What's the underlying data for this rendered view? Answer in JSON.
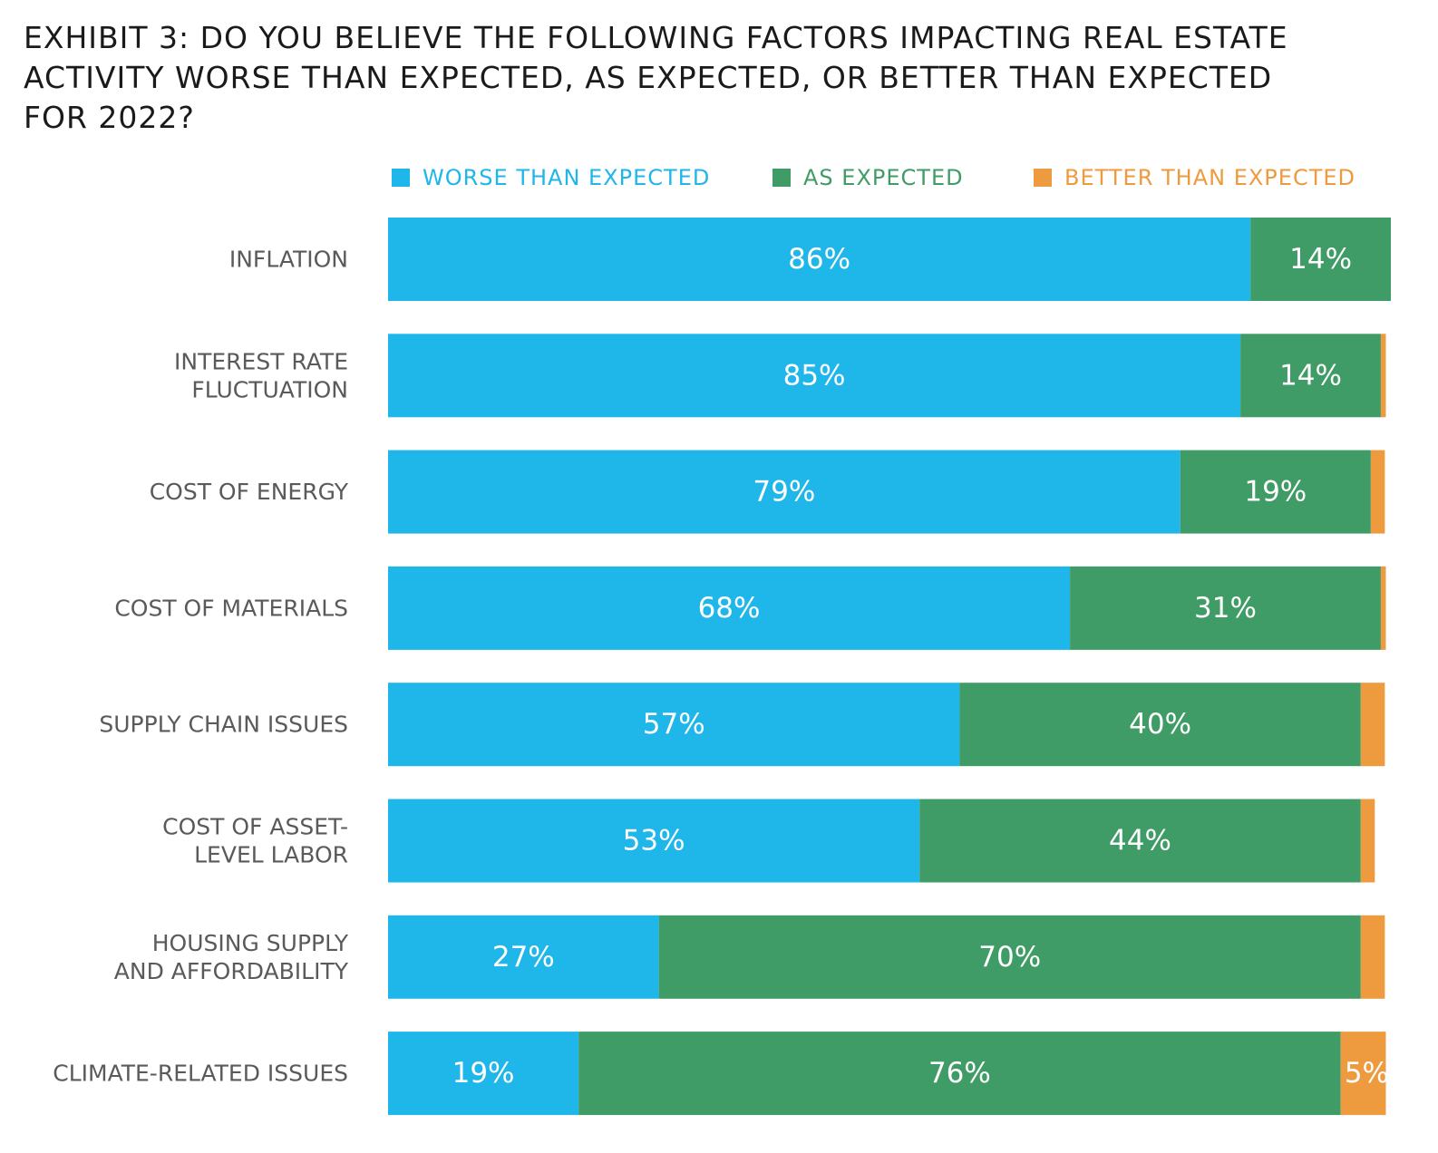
{
  "title": "EXHIBIT 3: DO YOU BELIEVE THE FOLLOWING FACTORS IMPACTING REAL ESTATE ACTIVITY WORSE THAN EXPECTED, AS EXPECTED, OR BETTER THAN EXPECTED FOR 2022?",
  "legend": {
    "worse": "WORSE THAN EXPECTED",
    "as_expected": "AS EXPECTED",
    "better": "BETTER THAN EXPECTED"
  },
  "colors": {
    "worse": "#1fb6ea",
    "as_expected": "#409c66",
    "better": "#ee9a3e"
  },
  "chart_data": {
    "type": "bar",
    "orientation": "horizontal",
    "stacked": true,
    "title": "EXHIBIT 3: DO YOU BELIEVE THE FOLLOWING FACTORS IMPACTING REAL ESTATE ACTIVITY WORSE THAN EXPECTED, AS EXPECTED, OR BETTER THAN EXPECTED FOR 2022?",
    "categories": [
      [
        "INFLATION"
      ],
      [
        "INTEREST RATE",
        "FLUCTUATION"
      ],
      [
        "COST OF ENERGY"
      ],
      [
        "COST OF MATERIALS"
      ],
      [
        "SUPPLY CHAIN ISSUES"
      ],
      [
        "COST OF ASSET-",
        "LEVEL LABOR"
      ],
      [
        "HOUSING SUPPLY",
        "AND AFFORDABILITY"
      ],
      [
        "CLIMATE-RELATED ISSUES"
      ]
    ],
    "series": [
      {
        "name": "WORSE THAN EXPECTED",
        "values": [
          86,
          85,
          79,
          68,
          57,
          53,
          27,
          19
        ],
        "labels": [
          "86%",
          "85%",
          "79%",
          "68%",
          "57%",
          "53%",
          "27%",
          "19%"
        ]
      },
      {
        "name": "AS EXPECTED",
        "values": [
          14,
          14,
          19,
          31,
          40,
          44,
          70,
          76
        ],
        "labels": [
          "14%",
          "14%",
          "19%",
          "31%",
          "40%",
          "44%",
          "70%",
          "76%"
        ]
      },
      {
        "name": "BETTER THAN EXPECTED",
        "values": [
          0,
          0.5,
          1.4,
          0.5,
          2.4,
          1.4,
          2.4,
          4.5
        ],
        "labels": [
          "",
          "",
          "",
          "",
          "",
          "",
          "",
          "5%"
        ]
      }
    ],
    "xlim": [
      0,
      100
    ],
    "grid": false,
    "legend_position": "top"
  }
}
